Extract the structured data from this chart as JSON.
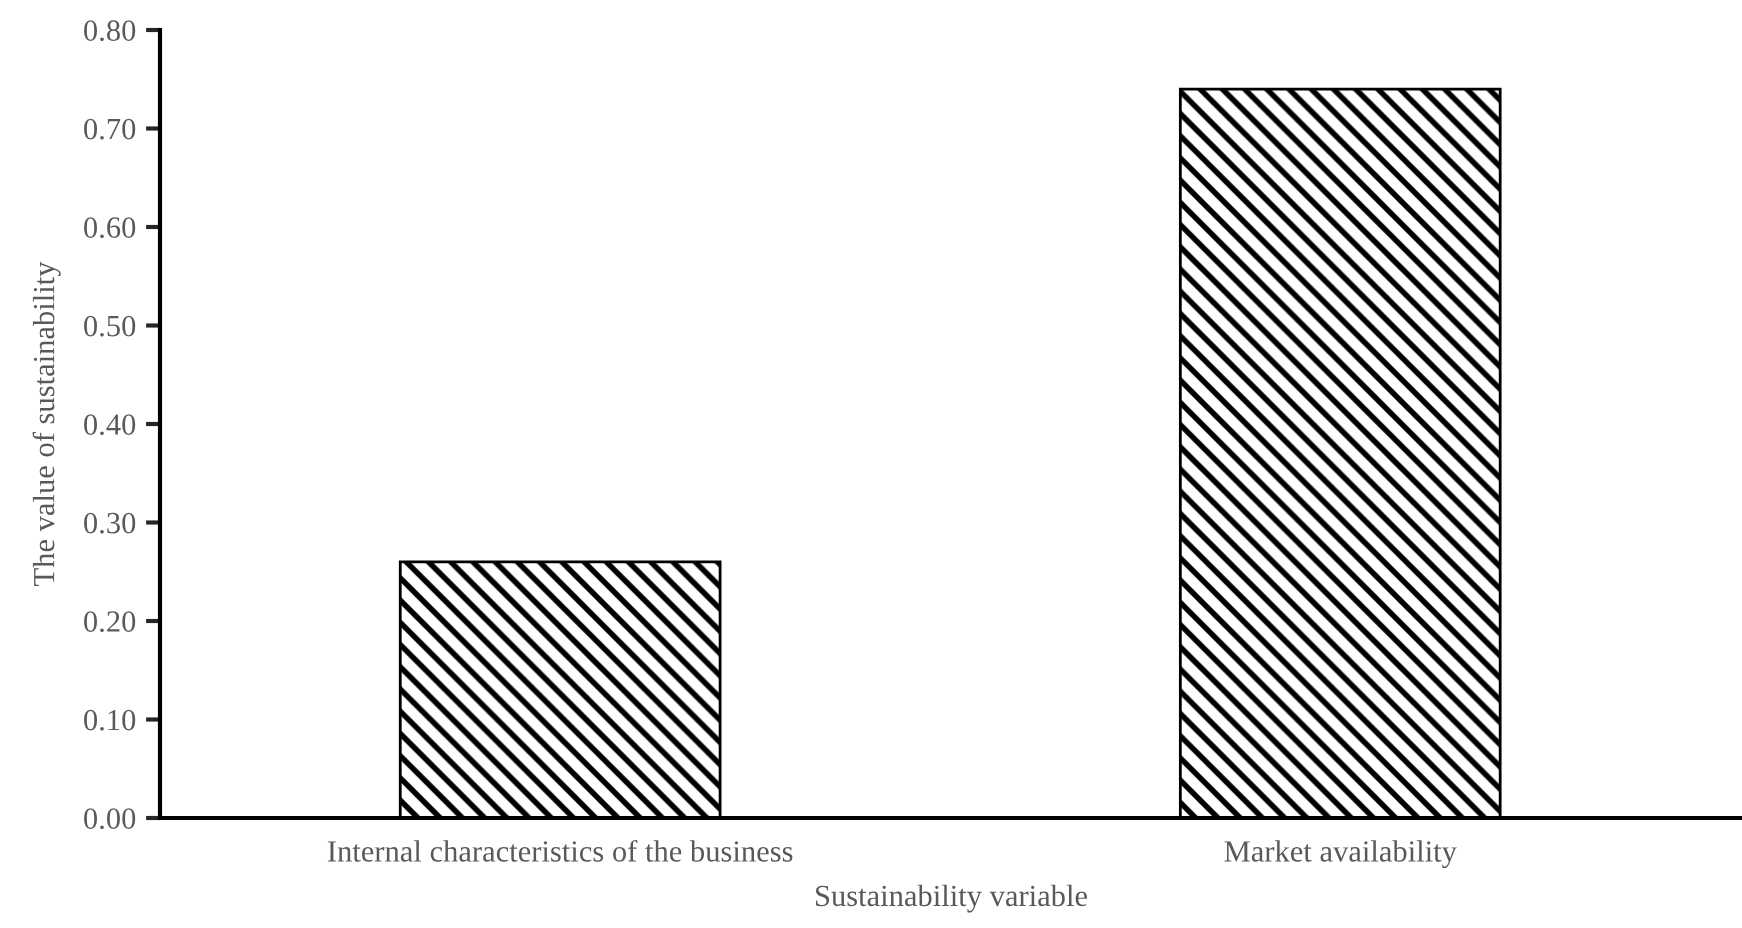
{
  "chart_data": {
    "type": "bar",
    "xlabel": "Sustainability variable",
    "ylabel": "The value of sustainability",
    "categories": [
      "Internal characteristics of the business",
      "Market availability"
    ],
    "values": [
      0.26,
      0.74
    ],
    "color": "#000000",
    "ylim": [
      0,
      0.8
    ],
    "yticks": [
      {
        "value": 0,
        "label": "0.00"
      },
      {
        "value": 0.1,
        "label": "0.10"
      },
      {
        "value": 0.2,
        "label": "0.20"
      },
      {
        "value": 0.3,
        "label": "0.30"
      },
      {
        "value": 0.4,
        "label": "0.40"
      },
      {
        "value": 0.5,
        "label": "0.50"
      },
      {
        "value": 0.6,
        "label": "0.60"
      },
      {
        "value": 0.7,
        "label": "0.70"
      },
      {
        "value": 0.8,
        "label": "0.80"
      }
    ],
    "grid": false
  }
}
